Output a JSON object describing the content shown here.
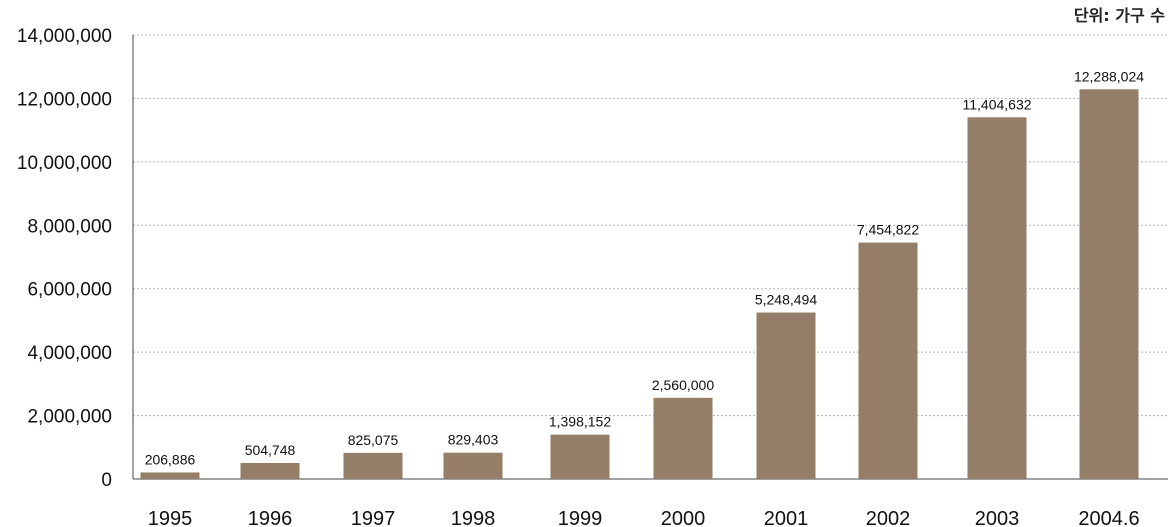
{
  "unit_note": "단위: 가구 수",
  "colors": {
    "bar": "#957e67",
    "grid": "#b5b5b5",
    "axis": "#444444"
  },
  "chart_data": {
    "type": "bar",
    "categories": [
      "1995",
      "1996",
      "1997",
      "1998",
      "1999",
      "2000",
      "2001",
      "2002",
      "2003",
      "2004.6"
    ],
    "values": [
      206886,
      504748,
      825075,
      829403,
      1398152,
      2560000,
      5248494,
      7454822,
      11404632,
      12288024
    ],
    "data_labels": [
      "206,886",
      "504,748",
      "825,075",
      "829,403",
      "1,398,152",
      "2,560,000",
      "5,248,494",
      "7,454,822",
      "11,404,632",
      "12,288,024"
    ],
    "y_ticks": [
      0,
      2000000,
      4000000,
      6000000,
      8000000,
      10000000,
      12000000,
      14000000
    ],
    "y_tick_labels": [
      "0",
      "2,000,000",
      "4,000,000",
      "6,000,000",
      "8,000,000",
      "10,000,000",
      "12,000,000",
      "14,000,000"
    ],
    "ylim": [
      0,
      14000000
    ],
    "grid": true,
    "legend": "none",
    "title": "",
    "xlabel": "",
    "ylabel": ""
  }
}
